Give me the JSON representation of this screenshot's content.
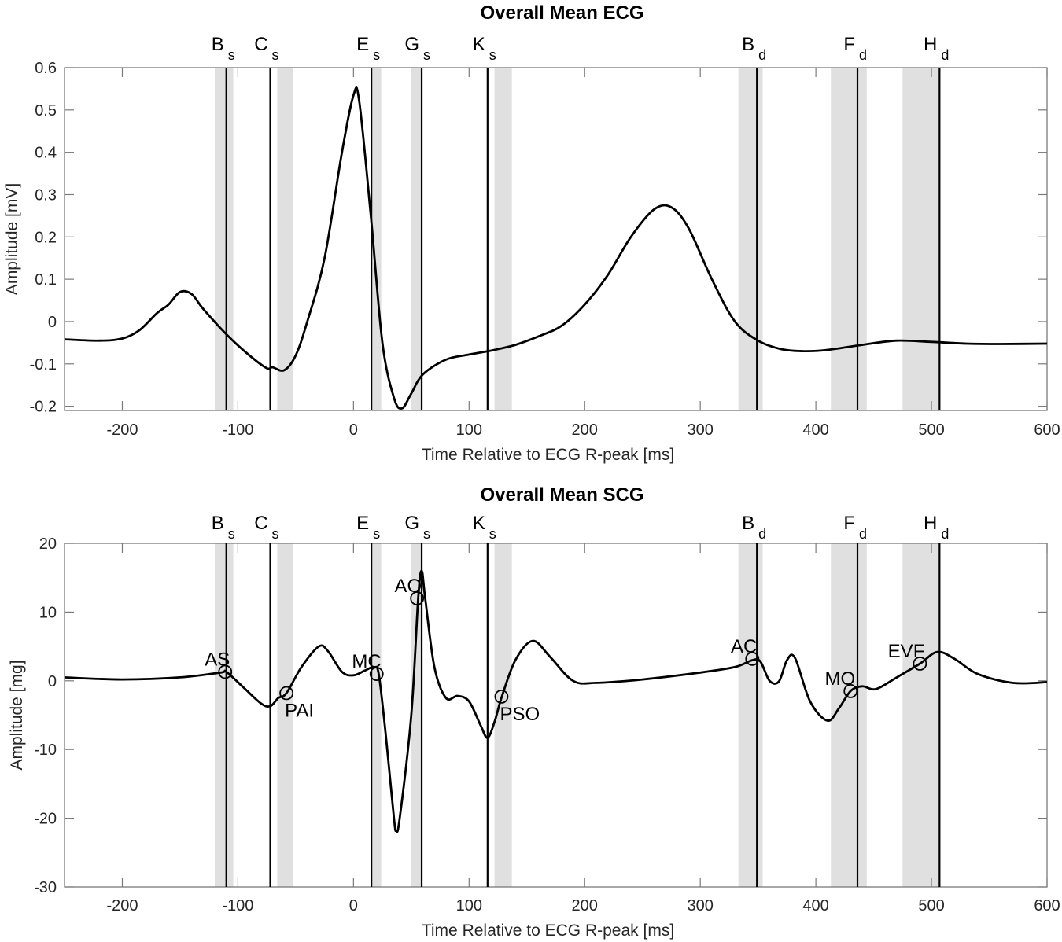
{
  "chart_data": [
    {
      "type": "line",
      "title": "Overall Mean ECG",
      "xlabel": "Time Relative to ECG R-peak [ms]",
      "ylabel": "Amplitude [mV]",
      "xlim": [
        -250,
        600
      ],
      "ylim": [
        -0.21,
        0.6
      ],
      "xticks": [
        -200,
        -100,
        0,
        100,
        200,
        300,
        400,
        500,
        600
      ],
      "yticks": [
        -0.2,
        -0.1,
        0,
        0.1,
        0.2,
        0.3,
        0.4,
        0.5,
        0.6
      ],
      "ytick_labels": [
        "-0.2",
        "-0.1",
        "0",
        "0.1",
        "0.2",
        "0.3",
        "0.4",
        "0.5",
        "0.6"
      ],
      "grid": false,
      "series": [
        {
          "name": "ECG",
          "x": [
            -250,
            -220,
            -200,
            -185,
            -170,
            -160,
            -150,
            -140,
            -130,
            -110,
            -90,
            -75,
            -70,
            -60,
            -50,
            -40,
            -25,
            -10,
            0,
            5,
            15,
            25,
            35,
            42,
            50,
            60,
            80,
            100,
            120,
            140,
            160,
            180,
            200,
            220,
            240,
            260,
            275,
            290,
            310,
            330,
            350,
            370,
            390,
            410,
            440,
            470,
            500,
            530,
            560,
            600
          ],
          "y": [
            -0.042,
            -0.045,
            -0.04,
            -0.02,
            0.02,
            0.04,
            0.07,
            0.065,
            0.03,
            -0.03,
            -0.08,
            -0.11,
            -0.108,
            -0.115,
            -0.08,
            0.0,
            0.15,
            0.4,
            0.535,
            0.52,
            0.25,
            -0.05,
            -0.18,
            -0.205,
            -0.17,
            -0.125,
            -0.09,
            -0.078,
            -0.068,
            -0.055,
            -0.035,
            -0.01,
            0.04,
            0.11,
            0.2,
            0.265,
            0.27,
            0.22,
            0.1,
            0.0,
            -0.045,
            -0.065,
            -0.07,
            -0.067,
            -0.055,
            -0.045,
            -0.048,
            -0.052,
            -0.053,
            -0.052
          ]
        }
      ],
      "event_lines": [
        {
          "label": "B",
          "sub": "s",
          "x": -110,
          "band": [
            -120,
            -104
          ]
        },
        {
          "label": "C",
          "sub": "s",
          "x": -72,
          "band": [
            -66,
            -52
          ]
        },
        {
          "label": "E",
          "sub": "s",
          "x": 15.5,
          "band": [
            15,
            24
          ]
        },
        {
          "label": "G",
          "sub": "s",
          "x": 59,
          "band": [
            50,
            59
          ]
        },
        {
          "label": "K",
          "sub": "s",
          "x": 116,
          "band": [
            122,
            137
          ]
        },
        {
          "label": "B",
          "sub": "d",
          "x": 349,
          "band": [
            333,
            354
          ]
        },
        {
          "label": "F",
          "sub": "d",
          "x": 436,
          "band": [
            413,
            444
          ]
        },
        {
          "label": "H",
          "sub": "d",
          "x": 507,
          "band": [
            475,
            507
          ]
        }
      ]
    },
    {
      "type": "line",
      "title": "Overall Mean SCG",
      "xlabel": "Time Relative to ECG R-peak [ms]",
      "ylabel": "Amplitude [mg]",
      "xlim": [
        -250,
        600
      ],
      "ylim": [
        -30,
        20
      ],
      "xticks": [
        -200,
        -100,
        0,
        100,
        200,
        300,
        400,
        500,
        600
      ],
      "yticks": [
        -30,
        -20,
        -10,
        0,
        10,
        20
      ],
      "ytick_labels": [
        "-30",
        "-20",
        "-10",
        "0",
        "10",
        "20"
      ],
      "grid": false,
      "series": [
        {
          "name": "SCG",
          "x": [
            -250,
            -200,
            -150,
            -115,
            -110,
            -95,
            -80,
            -72,
            -65,
            -58,
            -45,
            -30,
            -22,
            -10,
            0,
            10,
            18,
            22,
            28,
            35,
            37,
            40,
            50,
            56,
            59,
            62,
            70,
            80,
            90,
            100,
            110,
            116,
            122,
            128,
            140,
            155,
            170,
            190,
            210,
            250,
            300,
            330,
            345,
            352,
            360,
            368,
            375,
            382,
            395,
            410,
            420,
            430,
            440,
            452,
            470,
            490,
            505,
            520,
            540,
            570,
            600
          ],
          "y": [
            0.5,
            0.2,
            0.5,
            1.2,
            1.3,
            -1,
            -3.3,
            -3.7,
            -2.5,
            -1.8,
            2,
            5,
            4.3,
            1.3,
            0.8,
            1.5,
            2,
            0.8,
            -8,
            -20,
            -21.8,
            -20,
            -5,
            12,
            16,
            12,
            2,
            -2.5,
            -2.2,
            -3,
            -6.5,
            -8.3,
            -6,
            -2.5,
            3,
            5.8,
            3.5,
            0,
            -0.3,
            0.2,
            1.2,
            2,
            3,
            2.8,
            0,
            -0.1,
            3,
            3.3,
            -3,
            -5.8,
            -4,
            -1.5,
            -0.8,
            -1.2,
            0.5,
            2.5,
            4.2,
            3.2,
            1,
            -0.3,
            -0.2
          ]
        }
      ],
      "markers": [
        {
          "label": "AS",
          "x": -111,
          "y": 1.3,
          "label_pos": "upper-left"
        },
        {
          "label": "PAI",
          "x": -58,
          "y": -1.8,
          "label_pos": "lower-right"
        },
        {
          "label": "MC",
          "x": 20,
          "y": 1.0,
          "label_pos": "upper-left"
        },
        {
          "label": "AO",
          "x": 55,
          "y": 12,
          "label_pos": "upper-left"
        },
        {
          "label": "PSO",
          "x": 128,
          "y": -2.3,
          "label_pos": "lower-right"
        },
        {
          "label": "AC",
          "x": 345,
          "y": 3.2,
          "label_pos": "upper-left"
        },
        {
          "label": "MO",
          "x": 430,
          "y": -1.5,
          "label_pos": "upper-left"
        },
        {
          "label": "EVF",
          "x": 490,
          "y": 2.5,
          "label_pos": "upper-left"
        }
      ],
      "event_lines": [
        {
          "label": "B",
          "sub": "s",
          "x": -110,
          "band": [
            -120,
            -104
          ]
        },
        {
          "label": "C",
          "sub": "s",
          "x": -72,
          "band": [
            -66,
            -52
          ]
        },
        {
          "label": "E",
          "sub": "s",
          "x": 15.5,
          "band": [
            15,
            24
          ]
        },
        {
          "label": "G",
          "sub": "s",
          "x": 59,
          "band": [
            50,
            59
          ]
        },
        {
          "label": "K",
          "sub": "s",
          "x": 116,
          "band": [
            122,
            137
          ]
        },
        {
          "label": "B",
          "sub": "d",
          "x": 349,
          "band": [
            333,
            354
          ]
        },
        {
          "label": "F",
          "sub": "d",
          "x": 436,
          "band": [
            413,
            444
          ]
        },
        {
          "label": "H",
          "sub": "d",
          "x": 507,
          "band": [
            475,
            507
          ]
        }
      ]
    }
  ],
  "colors": {
    "line": "#000000",
    "axis": "#262626",
    "band": "#e0e0e0",
    "event_line": "#000000"
  }
}
